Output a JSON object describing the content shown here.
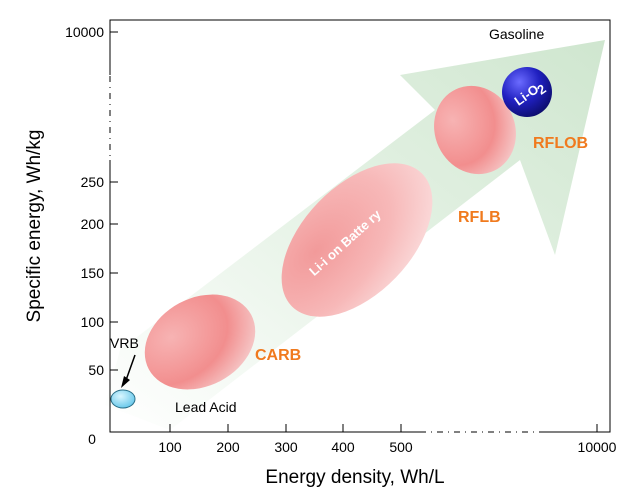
{
  "colors": {
    "orange_label": "#F07A1E",
    "arrow_fill": "#DDEFDD",
    "ellipse_red": "#F08080",
    "li_o2_blue": "#1F1FB0",
    "vrb_cyan": "#7FD7F0"
  },
  "chart_data": {
    "type": "scatter",
    "title": "",
    "xlabel": "Energy density, Wh/L",
    "ylabel": "Specific energy, Wh/kg",
    "x_ticks": [
      "0",
      "100",
      "200",
      "300",
      "400",
      "500",
      "10000"
    ],
    "y_ticks": [
      "50",
      "100",
      "150",
      "200",
      "250",
      "10000"
    ],
    "x_axis_break": true,
    "y_axis_break": true,
    "grid": false,
    "regions": [
      {
        "name": "VRB",
        "label": "VRB"
      },
      {
        "name": "Lead Acid",
        "label": "Lead Acid"
      },
      {
        "name": "CARB",
        "label": "CARB"
      },
      {
        "name": "Li-ion Battery",
        "label": "Li-i on Batte ry"
      },
      {
        "name": "RFLB",
        "label": "RFLB"
      },
      {
        "name": "RFLOB",
        "label": "RFLOB"
      },
      {
        "name": "Li-O2",
        "label": "Li-O",
        "label_subscript": "2"
      },
      {
        "name": "Gasoline",
        "label": "Gasoline"
      }
    ],
    "trend_arrow": {
      "from": "low energy density / low specific energy",
      "to": "high energy density / high specific energy"
    }
  }
}
